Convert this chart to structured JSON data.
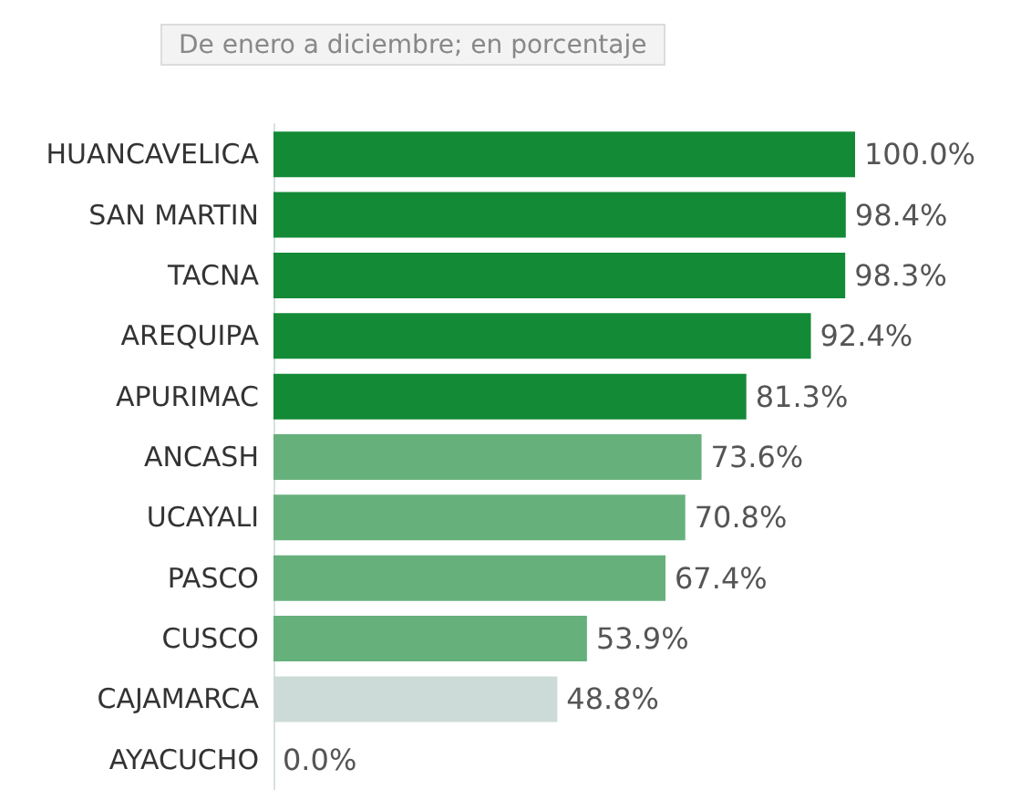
{
  "chart_data": {
    "type": "bar",
    "orientation": "horizontal",
    "subtitle": "De enero a diciembre; en porcentaje",
    "categories": [
      "HUANCAVELICA",
      "SAN MARTIN",
      "TACNA",
      "AREQUIPA",
      "APURIMAC",
      "ANCASH",
      "UCAYALI",
      "PASCO",
      "CUSCO",
      "CAJAMARCA",
      "AYACUCHO"
    ],
    "values": [
      100.0,
      98.4,
      98.3,
      92.4,
      81.3,
      73.6,
      70.8,
      67.4,
      53.9,
      48.8,
      0.0
    ],
    "value_labels": [
      "100.0%",
      "98.4%",
      "98.3%",
      "92.4%",
      "81.3%",
      "73.6%",
      "70.8%",
      "67.4%",
      "53.9%",
      "48.8%",
      "0.0%"
    ],
    "colors": [
      "#138a36",
      "#138a36",
      "#138a36",
      "#138a36",
      "#138a36",
      "#66b07c",
      "#66b07c",
      "#66b07c",
      "#66b07c",
      "#ccdbd8",
      "#ccdbd8"
    ]
  }
}
